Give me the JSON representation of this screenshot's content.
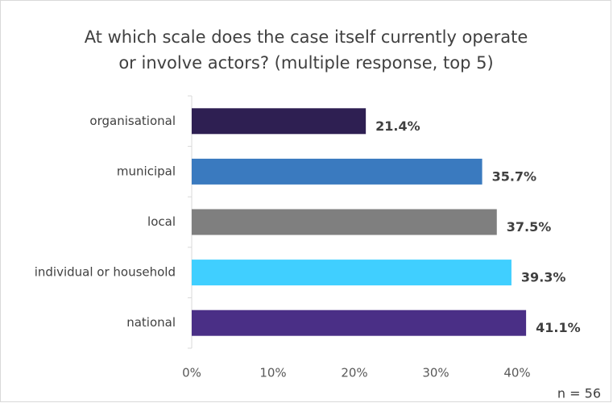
{
  "chart_data": {
    "type": "bar",
    "orientation": "horizontal",
    "title": [
      "At which scale does the case itself currently operate",
      "or involve actors? (multiple response, top 5)"
    ],
    "categories": [
      "organisational",
      "municipal",
      "local",
      "individual or household",
      "national"
    ],
    "values": [
      21.4,
      35.7,
      37.5,
      39.3,
      41.1
    ],
    "value_labels": [
      "21.4%",
      "35.7%",
      "37.5%",
      "39.3%",
      "41.1%"
    ],
    "colors": [
      "#2e1f52",
      "#3a7abf",
      "#7f7f7f",
      "#40cfff",
      "#4a2f86"
    ],
    "xlim": [
      0,
      50
    ],
    "xticks": [
      {
        "value": 0,
        "label": "0%"
      },
      {
        "value": 10,
        "label": "10%"
      },
      {
        "value": 20,
        "label": "20%"
      },
      {
        "value": 30,
        "label": "30%"
      },
      {
        "value": 40,
        "label": "40%"
      }
    ],
    "grid": false,
    "annotation": "n = 56"
  }
}
